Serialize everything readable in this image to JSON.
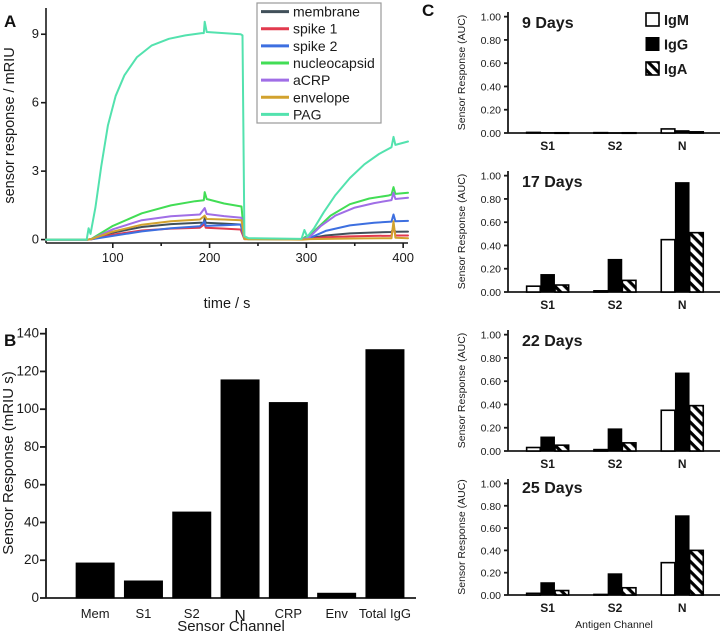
{
  "figure": {
    "background": "#ffffff",
    "axis_color": "#1a1a1a"
  },
  "panels": {
    "a": {
      "label": "A"
    },
    "b": {
      "label": "B"
    },
    "c": {
      "label": "C"
    }
  },
  "chart_data": [
    {
      "id": "A",
      "type": "line",
      "title": "",
      "xlabel": "time / s",
      "ylabel": "sensor response / mRIU",
      "xlim": [
        31,
        405
      ],
      "ylim": [
        -0.15,
        10.15
      ],
      "xticks": [
        100,
        200,
        300,
        400
      ],
      "xticks_minor": [
        150,
        250,
        350
      ],
      "yticks": [
        0,
        3,
        6,
        9
      ],
      "legend_position": "top-right",
      "series": [
        {
          "name": "membrane",
          "color": "#41505a",
          "points": [
            [
              31,
              0
            ],
            [
              74,
              0
            ],
            [
              78,
              0.02
            ],
            [
              100,
              0.3
            ],
            [
              130,
              0.55
            ],
            [
              160,
              0.68
            ],
            [
              190,
              0.74
            ],
            [
              194,
              0.74
            ],
            [
              195,
              0.95
            ],
            [
              196,
              0.74
            ],
            [
              215,
              0.7
            ],
            [
              232,
              0.66
            ],
            [
              234,
              0.66
            ],
            [
              236,
              0.04
            ],
            [
              240,
              0.02
            ],
            [
              296,
              0.02
            ],
            [
              303,
              0.05
            ],
            [
              320,
              0.18
            ],
            [
              345,
              0.27
            ],
            [
              370,
              0.31
            ],
            [
              388,
              0.33
            ],
            [
              390,
              0.5
            ],
            [
              392,
              0.34
            ],
            [
              405,
              0.35
            ]
          ]
        },
        {
          "name": "spike 1",
          "color": "#e23a4e",
          "points": [
            [
              31,
              0
            ],
            [
              74,
              0
            ],
            [
              78,
              0.01
            ],
            [
              100,
              0.22
            ],
            [
              130,
              0.4
            ],
            [
              160,
              0.48
            ],
            [
              190,
              0.52
            ],
            [
              195,
              0.68
            ],
            [
              196,
              0.52
            ],
            [
              215,
              0.48
            ],
            [
              232,
              0.44
            ],
            [
              236,
              0.02
            ],
            [
              296,
              0.01
            ],
            [
              303,
              0.04
            ],
            [
              320,
              0.1
            ],
            [
              345,
              0.14
            ],
            [
              370,
              0.16
            ],
            [
              388,
              0.17
            ],
            [
              390,
              0.63
            ],
            [
              392,
              0.18
            ],
            [
              405,
              0.18
            ]
          ]
        },
        {
          "name": "spike 2",
          "color": "#3d6fe0",
          "points": [
            [
              31,
              0
            ],
            [
              74,
              0
            ],
            [
              78,
              0.01
            ],
            [
              100,
              0.16
            ],
            [
              130,
              0.36
            ],
            [
              160,
              0.5
            ],
            [
              190,
              0.58
            ],
            [
              195,
              0.8
            ],
            [
              196,
              0.6
            ],
            [
              215,
              0.63
            ],
            [
              232,
              0.66
            ],
            [
              236,
              0.03
            ],
            [
              296,
              0.01
            ],
            [
              303,
              0.06
            ],
            [
              320,
              0.38
            ],
            [
              345,
              0.62
            ],
            [
              370,
              0.74
            ],
            [
              388,
              0.79
            ],
            [
              390,
              1.1
            ],
            [
              392,
              0.8
            ],
            [
              405,
              0.82
            ]
          ]
        },
        {
          "name": "nucleocapsid",
          "color": "#42dd55",
          "points": [
            [
              31,
              0
            ],
            [
              74,
              0
            ],
            [
              78,
              0.03
            ],
            [
              100,
              0.6
            ],
            [
              130,
              1.15
            ],
            [
              160,
              1.5
            ],
            [
              185,
              1.68
            ],
            [
              194,
              1.72
            ],
            [
              195,
              2.08
            ],
            [
              197,
              1.78
            ],
            [
              215,
              1.58
            ],
            [
              233,
              1.45
            ],
            [
              236,
              0.05
            ],
            [
              240,
              0.02
            ],
            [
              296,
              0.02
            ],
            [
              299,
              0.12
            ],
            [
              302,
              0.08
            ],
            [
              310,
              0.45
            ],
            [
              325,
              1.05
            ],
            [
              345,
              1.55
            ],
            [
              365,
              1.8
            ],
            [
              385,
              1.93
            ],
            [
              388,
              1.97
            ],
            [
              390,
              2.3
            ],
            [
              392,
              2.0
            ],
            [
              405,
              2.05
            ]
          ]
        },
        {
          "name": "aCRP",
          "color": "#a06ee6",
          "points": [
            [
              31,
              0
            ],
            [
              74,
              0
            ],
            [
              78,
              0.02
            ],
            [
              100,
              0.45
            ],
            [
              130,
              0.85
            ],
            [
              160,
              1.02
            ],
            [
              190,
              1.1
            ],
            [
              195,
              1.38
            ],
            [
              197,
              1.12
            ],
            [
              215,
              1.03
            ],
            [
              233,
              0.96
            ],
            [
              236,
              0.03
            ],
            [
              296,
              0.02
            ],
            [
              303,
              0.1
            ],
            [
              315,
              0.6
            ],
            [
              330,
              1.05
            ],
            [
              350,
              1.4
            ],
            [
              370,
              1.6
            ],
            [
              388,
              1.73
            ],
            [
              390,
              2.05
            ],
            [
              392,
              1.78
            ],
            [
              405,
              1.83
            ]
          ]
        },
        {
          "name": "envelope",
          "color": "#d2a22e",
          "points": [
            [
              31,
              0
            ],
            [
              74,
              0
            ],
            [
              78,
              0.02
            ],
            [
              100,
              0.35
            ],
            [
              130,
              0.65
            ],
            [
              160,
              0.8
            ],
            [
              190,
              0.88
            ],
            [
              195,
              1.05
            ],
            [
              197,
              0.9
            ],
            [
              215,
              0.88
            ],
            [
              233,
              0.85
            ],
            [
              236,
              0.02
            ],
            [
              296,
              0
            ],
            [
              303,
              0.02
            ],
            [
              330,
              0.04
            ],
            [
              360,
              0.05
            ],
            [
              388,
              0.06
            ],
            [
              390,
              0.8
            ],
            [
              392,
              0.08
            ],
            [
              405,
              0.06
            ]
          ]
        },
        {
          "name": "PAG",
          "color": "#53e2ae",
          "points": [
            [
              31,
              0
            ],
            [
              73,
              0
            ],
            [
              75,
              0.5
            ],
            [
              77,
              0.25
            ],
            [
              82,
              1.4
            ],
            [
              88,
              3.2
            ],
            [
              95,
              5.0
            ],
            [
              103,
              6.3
            ],
            [
              112,
              7.2
            ],
            [
              125,
              8.0
            ],
            [
              140,
              8.5
            ],
            [
              158,
              8.8
            ],
            [
              175,
              8.95
            ],
            [
              192,
              9.05
            ],
            [
              194,
              9.05
            ],
            [
              195,
              9.55
            ],
            [
              197,
              9.1
            ],
            [
              232,
              9.0
            ],
            [
              234,
              8.95
            ],
            [
              236,
              0.15
            ],
            [
              240,
              0.06
            ],
            [
              295,
              0.03
            ],
            [
              298,
              0.42
            ],
            [
              301,
              0.12
            ],
            [
              308,
              0.5
            ],
            [
              318,
              1.2
            ],
            [
              330,
              1.95
            ],
            [
              345,
              2.7
            ],
            [
              360,
              3.3
            ],
            [
              375,
              3.75
            ],
            [
              388,
              4.05
            ],
            [
              390,
              4.5
            ],
            [
              392,
              4.15
            ],
            [
              405,
              4.3
            ]
          ]
        }
      ]
    },
    {
      "id": "B",
      "type": "bar",
      "title": "",
      "xlabel": "Sensor Channel",
      "ylabel": "Sensor Response (mRIU s)",
      "categories": [
        "Mem",
        "S1",
        "S2",
        "N",
        "CRP",
        "Env",
        "Total IgG"
      ],
      "values": [
        18.5,
        9,
        45.5,
        115.5,
        103.5,
        2.5,
        131.5
      ],
      "bar_color": "#000000",
      "ylim": [
        0,
        143
      ],
      "yticks": [
        0,
        20,
        40,
        60,
        80,
        100,
        120,
        140
      ],
      "ytick_decimals": 0
    },
    {
      "id": "C1",
      "type": "grouped_bar",
      "title": "9 Days",
      "xlabel": "",
      "ylabel": "Sensor Response (AUC)",
      "categories": [
        "S1",
        "S2",
        "N"
      ],
      "series": [
        {
          "name": "IgM",
          "style": "open",
          "values": [
            0.005,
            0.003,
            0.035
          ]
        },
        {
          "name": "IgG",
          "style": "solid",
          "values": [
            0.003,
            0.002,
            0.02
          ]
        },
        {
          "name": "IgA",
          "style": "hatch",
          "values": [
            0.002,
            0.002,
            0.01
          ]
        }
      ],
      "ylim": [
        0,
        1.04
      ],
      "yticks": [
        0,
        0.2,
        0.4,
        0.6,
        0.8,
        1.0
      ],
      "ytick_decimals": 2,
      "legend": true
    },
    {
      "id": "C2",
      "type": "grouped_bar",
      "title": "17 Days",
      "xlabel": "",
      "ylabel": "Sensor Response (AUC)",
      "categories": [
        "S1",
        "S2",
        "N"
      ],
      "series": [
        {
          "name": "IgM",
          "style": "open",
          "values": [
            0.05,
            0.01,
            0.45
          ]
        },
        {
          "name": "IgG",
          "style": "solid",
          "values": [
            0.15,
            0.28,
            0.94
          ]
        },
        {
          "name": "IgA",
          "style": "hatch",
          "values": [
            0.06,
            0.1,
            0.51
          ]
        }
      ],
      "ylim": [
        0,
        1.04
      ],
      "yticks": [
        0,
        0.2,
        0.4,
        0.6,
        0.8,
        1.0
      ],
      "ytick_decimals": 2,
      "legend": false
    },
    {
      "id": "C3",
      "type": "grouped_bar",
      "title": "22 Days",
      "xlabel": "",
      "ylabel": "Sensor Response (AUC)",
      "categories": [
        "S1",
        "S2",
        "N"
      ],
      "series": [
        {
          "name": "IgM",
          "style": "open",
          "values": [
            0.03,
            0.012,
            0.35
          ]
        },
        {
          "name": "IgG",
          "style": "solid",
          "values": [
            0.12,
            0.19,
            0.67
          ]
        },
        {
          "name": "IgA",
          "style": "hatch",
          "values": [
            0.05,
            0.07,
            0.39
          ]
        }
      ],
      "ylim": [
        0,
        1.04
      ],
      "yticks": [
        0,
        0.2,
        0.4,
        0.6,
        0.8,
        1.0
      ],
      "ytick_decimals": 2,
      "legend": false
    },
    {
      "id": "C4",
      "type": "grouped_bar",
      "title": "25 Days",
      "xlabel": "Antigen Channel",
      "ylabel": "Sensor Response (AUC)",
      "categories": [
        "S1",
        "S2",
        "N"
      ],
      "series": [
        {
          "name": "IgM",
          "style": "open",
          "values": [
            0.015,
            0.005,
            0.29
          ]
        },
        {
          "name": "IgG",
          "style": "solid",
          "values": [
            0.11,
            0.19,
            0.71
          ]
        },
        {
          "name": "IgA",
          "style": "hatch",
          "values": [
            0.04,
            0.065,
            0.4
          ]
        }
      ],
      "ylim": [
        0,
        1.04
      ],
      "yticks": [
        0,
        0.2,
        0.4,
        0.6,
        0.8,
        1.0
      ],
      "ytick_decimals": 2,
      "legend": false
    }
  ]
}
